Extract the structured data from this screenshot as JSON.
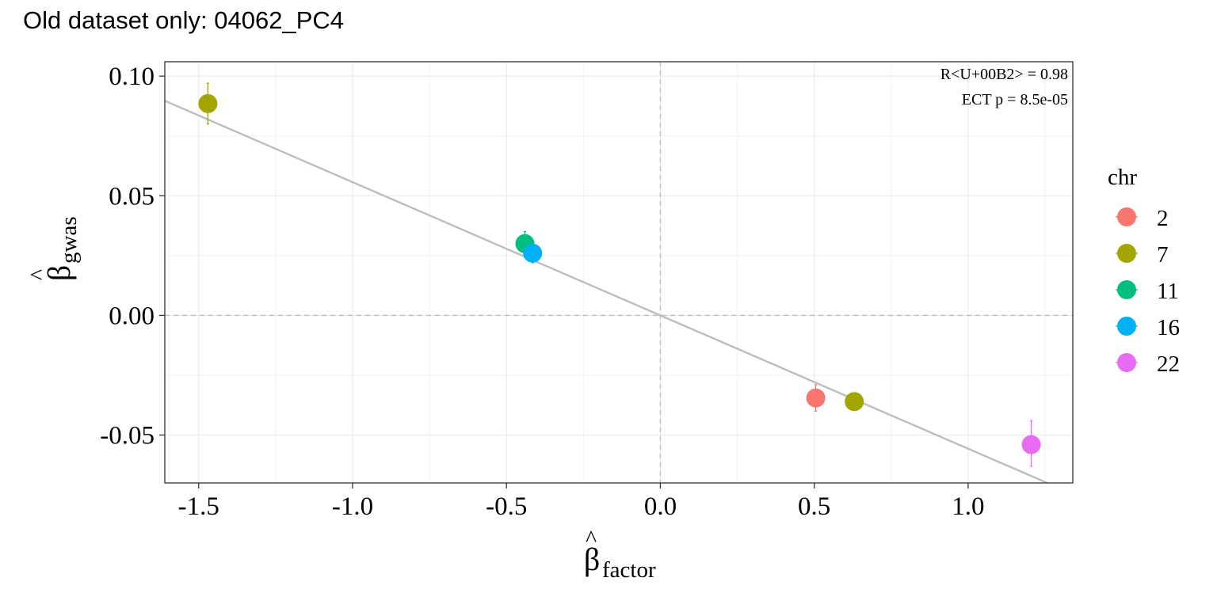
{
  "chart_data": {
    "type": "scatter",
    "title": "Old dataset only: 04062_PC4",
    "xlabel": {
      "symbol": "β",
      "hat": "^",
      "subscript": "factor"
    },
    "ylabel": {
      "symbol": "β",
      "hat": "^",
      "subscript": "gwas"
    },
    "xlim": [
      -1.61,
      1.34
    ],
    "ylim": [
      -0.07,
      0.106
    ],
    "x_ticks": [
      -1.5,
      -1.0,
      -0.5,
      0.0,
      0.5,
      1.0
    ],
    "x_tick_labels": [
      "-1.5",
      "-1.0",
      "-0.5",
      "0.0",
      "0.5",
      "1.0"
    ],
    "y_ticks": [
      -0.05,
      0.0,
      0.05,
      0.1
    ],
    "y_tick_labels": [
      "-0.05",
      "0.00",
      "0.05",
      "0.10"
    ],
    "grid": true,
    "reference_lines": {
      "x": 0,
      "y": 0,
      "style": "dashed"
    },
    "fit_line": {
      "slope": -0.0557,
      "intercept": 0.0,
      "color": "#bdbdbd"
    },
    "annotations": [
      "R<U+00B2> = 0.98",
      "ECT p = 8.5e-05"
    ],
    "legend": {
      "title": "chr",
      "position": "right",
      "entries": [
        {
          "label": "2",
          "color": "#F8766D"
        },
        {
          "label": "7",
          "color": "#A3A500"
        },
        {
          "label": "11",
          "color": "#00BF7D"
        },
        {
          "label": "16",
          "color": "#00B0F6"
        },
        {
          "label": "22",
          "color": "#E76BF3"
        }
      ]
    },
    "points": [
      {
        "chr": "7",
        "x": -1.47,
        "y": 0.0885,
        "ymin": 0.08,
        "ymax": 0.097
      },
      {
        "chr": "11",
        "x": -0.44,
        "y": 0.03,
        "ymin": 0.028,
        "ymax": 0.035
      },
      {
        "chr": "16",
        "x": -0.415,
        "y": 0.026,
        "ymin": 0.022,
        "ymax": 0.03
      },
      {
        "chr": "2",
        "x": 0.505,
        "y": -0.0345,
        "ymin": -0.04,
        "ymax": -0.029
      },
      {
        "chr": "7",
        "x": 0.63,
        "y": -0.036,
        "ymin": -0.038,
        "ymax": -0.034
      },
      {
        "chr": "22",
        "x": 1.205,
        "y": -0.054,
        "ymin": -0.063,
        "ymax": -0.044
      }
    ]
  }
}
